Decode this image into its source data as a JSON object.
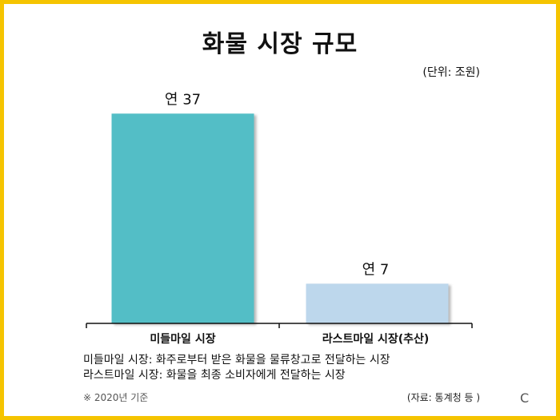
{
  "title": "화물 시장 규모",
  "unit_note": "(단위: 조원)",
  "chart_data": {
    "type": "bar",
    "categories": [
      "미들마일 시장",
      "라스트마일 시장(추산)"
    ],
    "values": [
      37,
      7
    ],
    "data_labels": [
      "연 37",
      "연 7"
    ],
    "ylim": [
      0,
      40
    ],
    "grid": false,
    "colors": [
      "#52bec6",
      "#bdd7ec"
    ]
  },
  "definitions": [
    "미들마일 시장: 화주로부터 받은 화물을 물류창고로 전달하는 시장",
    "라스트마일 시장: 화물을 최종 소비자에게 전달하는 시장"
  ],
  "basis_note": "※ 2020년 기준",
  "source_note": "(자료: 통계청 등 )",
  "corner_mark": "C",
  "colors": {
    "border": "#f5c400"
  }
}
